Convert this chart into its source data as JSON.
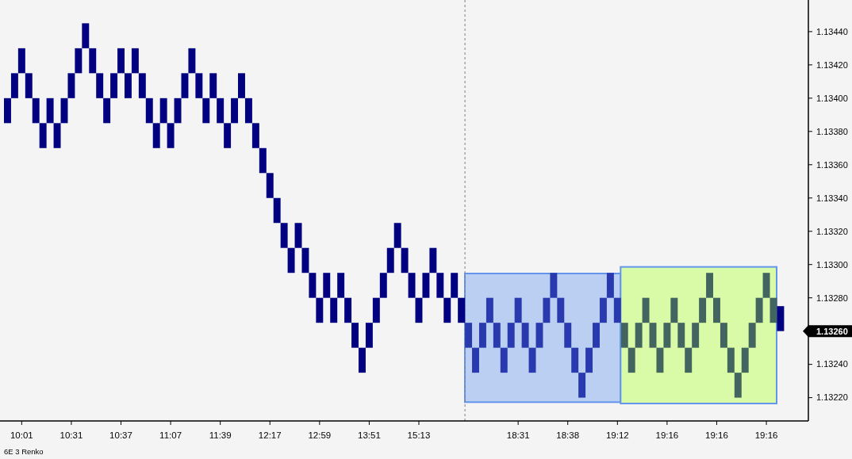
{
  "chart_data": {
    "type": "candlestick",
    "categories": [
      null,
      null,
      "10:01",
      null,
      null,
      null,
      null,
      null,
      null,
      "10:31",
      null,
      null,
      null,
      null,
      null,
      null,
      "10:37",
      null,
      null,
      null,
      null,
      null,
      null,
      "11:07",
      null,
      null,
      null,
      null,
      null,
      null,
      "11:39",
      null,
      null,
      null,
      null,
      null,
      null,
      "12:17",
      null,
      null,
      null,
      null,
      null,
      null,
      "12:59",
      null,
      null,
      null,
      null,
      null,
      null,
      "13:51",
      null,
      null,
      null,
      null,
      null,
      null,
      "15:13",
      null,
      null,
      null,
      null,
      null,
      null,
      null,
      null,
      null,
      null,
      null,
      null,
      null,
      "18:31",
      null,
      null,
      null,
      null,
      null,
      null,
      "18:38",
      null,
      null,
      null,
      null,
      null,
      null,
      "19:12",
      null,
      null,
      null,
      null,
      null,
      null,
      "19:16",
      null,
      null,
      null,
      null,
      null,
      null,
      "19:16",
      null,
      null,
      null,
      null,
      null,
      null,
      "19:16",
      null,
      null
    ],
    "ohlc": [
      [
        1.13385,
        1.134,
        1.13385,
        1.134
      ],
      [
        1.134,
        1.13415,
        1.134,
        1.13415
      ],
      [
        1.13415,
        1.1343,
        1.13415,
        1.1343
      ],
      [
        1.134,
        1.13415,
        1.134,
        1.13415
      ],
      [
        1.13385,
        1.134,
        1.13385,
        1.134
      ],
      [
        1.1337,
        1.13385,
        1.1337,
        1.13385
      ],
      [
        1.13385,
        1.134,
        1.13385,
        1.134
      ],
      [
        1.1337,
        1.13385,
        1.1337,
        1.13385
      ],
      [
        1.13385,
        1.134,
        1.13385,
        1.134
      ],
      [
        1.134,
        1.13415,
        1.134,
        1.13415
      ],
      [
        1.13415,
        1.1343,
        1.13415,
        1.1343
      ],
      [
        1.1343,
        1.13445,
        1.1343,
        1.13445
      ],
      [
        1.13415,
        1.1343,
        1.13415,
        1.1343
      ],
      [
        1.134,
        1.13415,
        1.134,
        1.13415
      ],
      [
        1.13385,
        1.134,
        1.13385,
        1.134
      ],
      [
        1.134,
        1.13415,
        1.134,
        1.13415
      ],
      [
        1.13415,
        1.1343,
        1.13415,
        1.1343
      ],
      [
        1.134,
        1.13415,
        1.134,
        1.13415
      ],
      [
        1.13415,
        1.1343,
        1.13415,
        1.1343
      ],
      [
        1.134,
        1.13415,
        1.134,
        1.13415
      ],
      [
        1.13385,
        1.134,
        1.13385,
        1.134
      ],
      [
        1.1337,
        1.13385,
        1.1337,
        1.13385
      ],
      [
        1.13385,
        1.134,
        1.13385,
        1.134
      ],
      [
        1.1337,
        1.13385,
        1.1337,
        1.13385
      ],
      [
        1.13385,
        1.134,
        1.13385,
        1.134
      ],
      [
        1.134,
        1.13415,
        1.134,
        1.13415
      ],
      [
        1.13415,
        1.1343,
        1.13415,
        1.1343
      ],
      [
        1.134,
        1.13415,
        1.134,
        1.13415
      ],
      [
        1.13385,
        1.134,
        1.13385,
        1.134
      ],
      [
        1.134,
        1.13415,
        1.134,
        1.13415
      ],
      [
        1.13385,
        1.134,
        1.13385,
        1.134
      ],
      [
        1.1337,
        1.13385,
        1.1337,
        1.13385
      ],
      [
        1.13385,
        1.134,
        1.13385,
        1.134
      ],
      [
        1.134,
        1.13415,
        1.134,
        1.13415
      ],
      [
        1.13385,
        1.134,
        1.13385,
        1.134
      ],
      [
        1.1337,
        1.13385,
        1.1337,
        1.13385
      ],
      [
        1.13355,
        1.1337,
        1.13355,
        1.1337
      ],
      [
        1.1334,
        1.13355,
        1.1334,
        1.13355
      ],
      [
        1.13325,
        1.1334,
        1.13325,
        1.1334
      ],
      [
        1.1331,
        1.13325,
        1.1331,
        1.13325
      ],
      [
        1.13295,
        1.1331,
        1.13295,
        1.1331
      ],
      [
        1.1331,
        1.13325,
        1.1331,
        1.13325
      ],
      [
        1.13295,
        1.1331,
        1.13295,
        1.1331
      ],
      [
        1.1328,
        1.13295,
        1.1328,
        1.13295
      ],
      [
        1.13265,
        1.1328,
        1.13265,
        1.1328
      ],
      [
        1.1328,
        1.13295,
        1.1328,
        1.13295
      ],
      [
        1.13265,
        1.1328,
        1.13265,
        1.1328
      ],
      [
        1.1328,
        1.13295,
        1.1328,
        1.13295
      ],
      [
        1.13265,
        1.1328,
        1.13265,
        1.1328
      ],
      [
        1.1325,
        1.13265,
        1.1325,
        1.13265
      ],
      [
        1.13235,
        1.1325,
        1.13235,
        1.1325
      ],
      [
        1.1325,
        1.13265,
        1.1325,
        1.13265
      ],
      [
        1.13265,
        1.1328,
        1.13265,
        1.1328
      ],
      [
        1.1328,
        1.13295,
        1.1328,
        1.13295
      ],
      [
        1.13295,
        1.1331,
        1.13295,
        1.1331
      ],
      [
        1.1331,
        1.13325,
        1.1331,
        1.13325
      ],
      [
        1.13295,
        1.1331,
        1.13295,
        1.1331
      ],
      [
        1.1328,
        1.13295,
        1.1328,
        1.13295
      ],
      [
        1.13265,
        1.1328,
        1.13265,
        1.1328
      ],
      [
        1.1328,
        1.13295,
        1.1328,
        1.13295
      ],
      [
        1.13295,
        1.1331,
        1.13295,
        1.1331
      ],
      [
        1.1328,
        1.13295,
        1.1328,
        1.13295
      ],
      [
        1.13265,
        1.1328,
        1.13265,
        1.1328
      ],
      [
        1.1328,
        1.13295,
        1.1328,
        1.13295
      ],
      [
        1.13265,
        1.1328,
        1.13265,
        1.1328
      ],
      [
        1.1325,
        1.13265,
        1.1325,
        1.13265
      ],
      [
        1.13235,
        1.1325,
        1.13235,
        1.1325
      ],
      [
        1.1325,
        1.13265,
        1.1325,
        1.13265
      ],
      [
        1.13265,
        1.1328,
        1.13265,
        1.1328
      ],
      [
        1.1325,
        1.13265,
        1.1325,
        1.13265
      ],
      [
        1.13235,
        1.1325,
        1.13235,
        1.1325
      ],
      [
        1.1325,
        1.13265,
        1.1325,
        1.13265
      ],
      [
        1.13265,
        1.1328,
        1.13265,
        1.1328
      ],
      [
        1.1325,
        1.13265,
        1.1325,
        1.13265
      ],
      [
        1.13235,
        1.1325,
        1.13235,
        1.1325
      ],
      [
        1.1325,
        1.13265,
        1.1325,
        1.13265
      ],
      [
        1.13265,
        1.1328,
        1.13265,
        1.1328
      ],
      [
        1.1328,
        1.13295,
        1.1328,
        1.13295
      ],
      [
        1.13265,
        1.1328,
        1.13265,
        1.1328
      ],
      [
        1.1325,
        1.13265,
        1.1325,
        1.13265
      ],
      [
        1.13235,
        1.1325,
        1.13235,
        1.1325
      ],
      [
        1.1322,
        1.13235,
        1.1322,
        1.13235
      ],
      [
        1.13235,
        1.1325,
        1.13235,
        1.1325
      ],
      [
        1.1325,
        1.13265,
        1.1325,
        1.13265
      ],
      [
        1.13265,
        1.1328,
        1.13265,
        1.1328
      ],
      [
        1.1328,
        1.13295,
        1.1328,
        1.13295
      ],
      [
        1.13265,
        1.1328,
        1.13265,
        1.1328
      ],
      [
        1.1325,
        1.13265,
        1.1325,
        1.13265
      ],
      [
        1.13235,
        1.1325,
        1.13235,
        1.1325
      ],
      [
        1.1325,
        1.13265,
        1.1325,
        1.13265
      ],
      [
        1.13265,
        1.1328,
        1.13265,
        1.1328
      ],
      [
        1.1325,
        1.13265,
        1.1325,
        1.13265
      ],
      [
        1.13235,
        1.1325,
        1.13235,
        1.1325
      ],
      [
        1.1325,
        1.13265,
        1.1325,
        1.13265
      ],
      [
        1.13265,
        1.1328,
        1.13265,
        1.1328
      ],
      [
        1.1325,
        1.13265,
        1.1325,
        1.13265
      ],
      [
        1.13235,
        1.1325,
        1.13235,
        1.1325
      ],
      [
        1.1325,
        1.13265,
        1.1325,
        1.13265
      ],
      [
        1.13265,
        1.1328,
        1.13265,
        1.1328
      ],
      [
        1.1328,
        1.13295,
        1.1328,
        1.13295
      ],
      [
        1.13265,
        1.1328,
        1.13265,
        1.1328
      ],
      [
        1.1325,
        1.13265,
        1.1325,
        1.13265
      ],
      [
        1.13235,
        1.1325,
        1.13235,
        1.1325
      ],
      [
        1.1322,
        1.13235,
        1.1322,
        1.13235
      ],
      [
        1.13235,
        1.1325,
        1.13235,
        1.1325
      ],
      [
        1.1325,
        1.13265,
        1.1325,
        1.13265
      ],
      [
        1.13265,
        1.1328,
        1.13265,
        1.1328
      ],
      [
        1.1328,
        1.13295,
        1.1328,
        1.13295
      ],
      [
        1.13265,
        1.1328,
        1.13265,
        1.1328
      ],
      [
        1.1326,
        1.13275,
        1.1326,
        1.13275
      ]
    ],
    "colors": [
      "#000080",
      "#000080",
      "#000080",
      "#000080",
      "#000080",
      "#000080",
      "#000080",
      "#000080",
      "#000080",
      "#000080",
      "#000080",
      "#000080",
      "#000080",
      "#000080",
      "#000080",
      "#000080",
      "#000080",
      "#000080",
      "#000080",
      "#000080",
      "#000080",
      "#000080",
      "#000080",
      "#000080",
      "#000080",
      "#000080",
      "#000080",
      "#000080",
      "#000080",
      "#000080",
      "#000080",
      "#000080",
      "#000080",
      "#000080",
      "#000080",
      "#000080",
      "#000080",
      "#000080",
      "#000080",
      "#000080",
      "#000080",
      "#000080",
      "#000080",
      "#000080",
      "#000080",
      "#000080",
      "#000080",
      "#000080",
      "#000080",
      "#000080",
      "#000080",
      "#000080",
      "#000080",
      "#000080",
      "#000080",
      "#000080",
      "#000080",
      "#000080",
      "#000080",
      "#000080",
      "#000080",
      "#000080",
      "#000080",
      "#000080",
      "#000080",
      "#283aad",
      "#283aad",
      "#283aad",
      "#283aad",
      "#283aad",
      "#283aad",
      "#283aad",
      "#283aad",
      "#283aad",
      "#283aad",
      "#283aad",
      "#283aad",
      "#283aad",
      "#283aad",
      "#283aad",
      "#283aad",
      "#283aad",
      "#283aad",
      "#283aad",
      "#283aad",
      "#283aad",
      "#283aad",
      "#436560",
      "#436560",
      "#436560",
      "#436560",
      "#436560",
      "#436560",
      "#436560",
      "#436560",
      "#436560",
      "#436560",
      "#436560",
      "#436560",
      "#436560",
      "#436560",
      "#436560",
      "#436560",
      "#436560",
      "#436560",
      "#436560",
      "#436560",
      "#436560",
      "#436560",
      "#000080"
    ],
    "ylim": [
      1.13206,
      1.13459
    ],
    "yticks": [
      {
        "value": 1.1322,
        "label": "1.13220"
      },
      {
        "value": 1.1324,
        "label": "1.13240"
      },
      {
        "value": 1.1328,
        "label": "1.13280"
      },
      {
        "value": 1.133,
        "label": "1.13300"
      },
      {
        "value": 1.1332,
        "label": "1.13320"
      },
      {
        "value": 1.1334,
        "label": "1.13340"
      },
      {
        "value": 1.1336,
        "label": "1.13360"
      },
      {
        "value": 1.1338,
        "label": "1.13380"
      },
      {
        "value": 1.134,
        "label": "1.13400"
      },
      {
        "value": 1.1342,
        "label": "1.13420"
      },
      {
        "value": 1.1344,
        "label": "1.13440"
      }
    ],
    "annotations": [
      "6E 3 Renko",
      "1.13260"
    ]
  }
}
